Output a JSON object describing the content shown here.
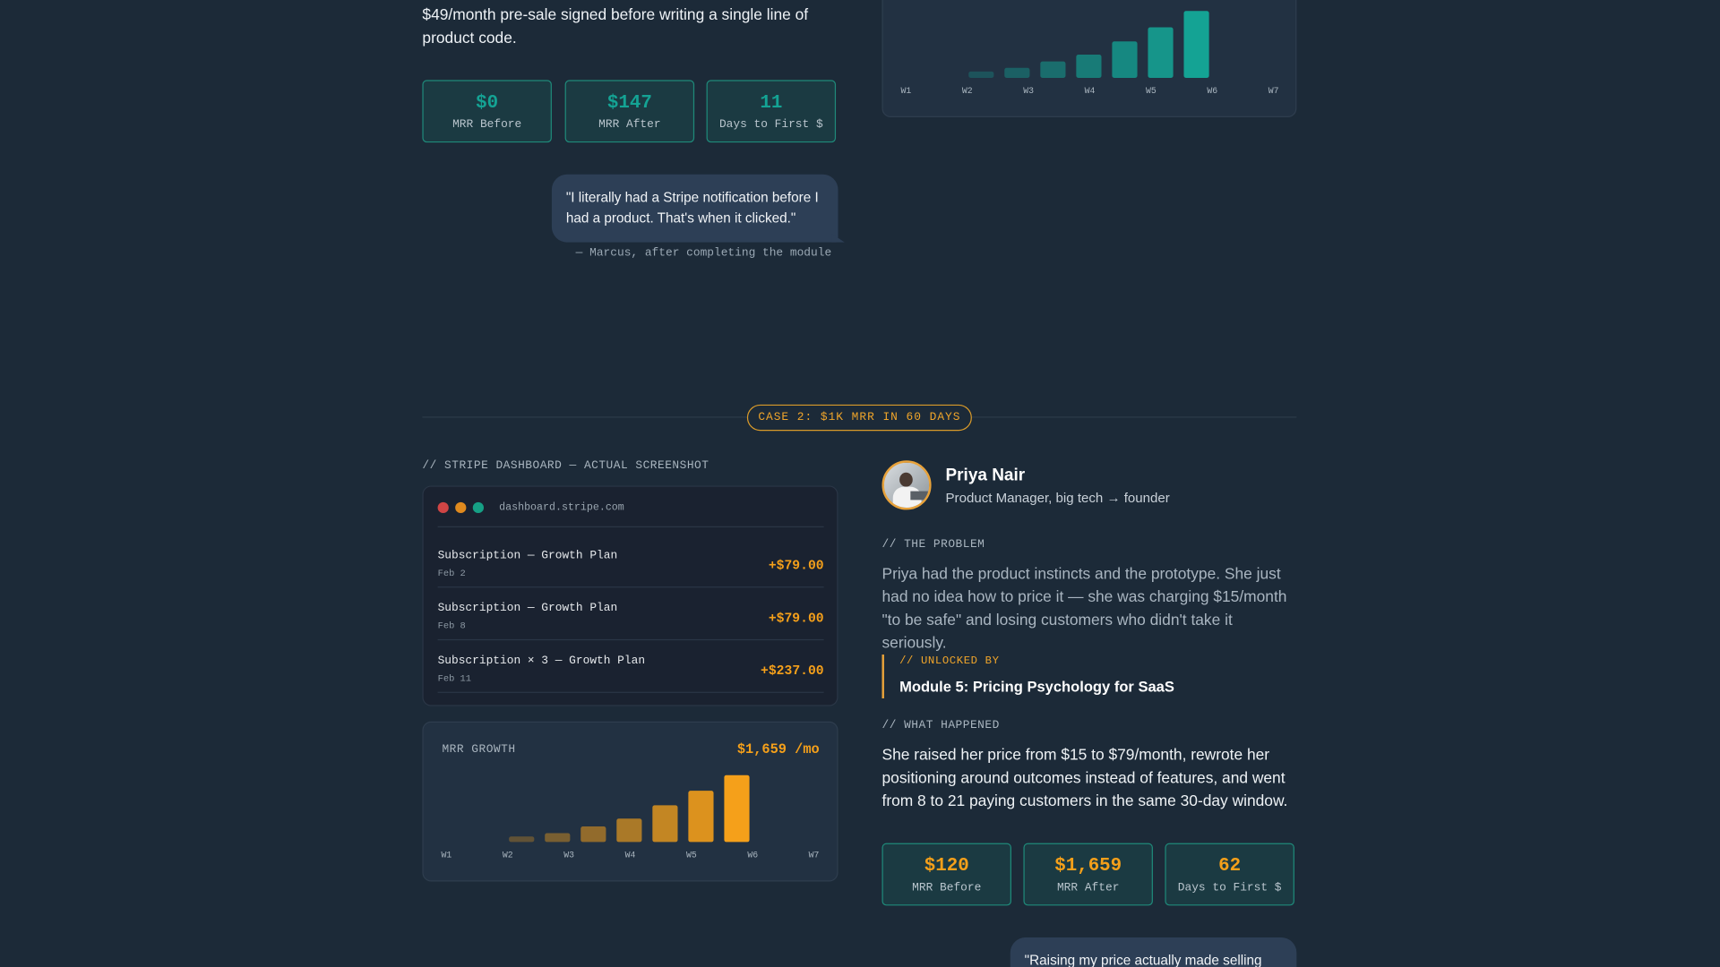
{
  "case1": {
    "intro": "$49/month pre-sale signed before writing a single line of product code.",
    "stats": [
      {
        "value": "$0",
        "label": "MRR Before"
      },
      {
        "value": "$147",
        "label": "MRR After"
      },
      {
        "value": "11",
        "label": "Days to First $"
      }
    ],
    "quote": "\"I literally had a Stripe notification before I had a product. That's when it clicked.\"",
    "attribution": "— Marcus, after completing the module",
    "chart": {
      "type": "bar",
      "categories": [
        "W1",
        "W2",
        "W3",
        "W4",
        "W5",
        "W6",
        "W7"
      ],
      "values": [
        14,
        22,
        36,
        51,
        80,
        111,
        147
      ],
      "color": "#14a394"
    }
  },
  "case2": {
    "badge": "CASE 2: $1K MRR IN 60 DAYS",
    "dashboard_caption": "// STRIPE DASHBOARD — ACTUAL SCREENSHOT",
    "url": "dashboard.stripe.com",
    "transactions": [
      {
        "title": "Subscription — Growth Plan",
        "date": "Feb 2",
        "amount": "+$79.00"
      },
      {
        "title": "Subscription — Growth Plan",
        "date": "Feb 8",
        "amount": "+$79.00"
      },
      {
        "title": "Subscription × 3 — Growth Plan",
        "date": "Feb 11",
        "amount": "+$237.00"
      }
    ],
    "chart": {
      "type": "bar",
      "title": "MRR GROWTH",
      "total": "$1,659 /mo",
      "categories": [
        "W1",
        "W2",
        "W3",
        "W4",
        "W5",
        "W6",
        "W7"
      ],
      "values": [
        138,
        221,
        387,
        581,
        912,
        1272,
        1659
      ],
      "color": "#f5a01a"
    },
    "profile": {
      "name": "Priya Nair",
      "role": "Product Manager, big tech → founder"
    },
    "problem_label": "// THE PROBLEM",
    "problem": "Priya had the product instincts and the prototype. She just had no idea how to price it — she was charging $15/month \"to be safe\" and losing customers who didn't take it seriously.",
    "unlocked_label": "// UNLOCKED BY",
    "unlocked": "Module 5: Pricing Psychology for SaaS",
    "happened_label": "// WHAT HAPPENED",
    "happened": "She raised her price from $15 to $79/month, rewrote her positioning around outcomes instead of features, and went from 8 to 21 paying customers in the same 30-day window.",
    "stats": [
      {
        "value": "$120",
        "label": "MRR Before"
      },
      {
        "value": "$1,659",
        "label": "MRR After"
      },
      {
        "value": "62",
        "label": "Days to First $"
      }
    ],
    "quote": "\"Raising my price actually made selling easier."
  }
}
